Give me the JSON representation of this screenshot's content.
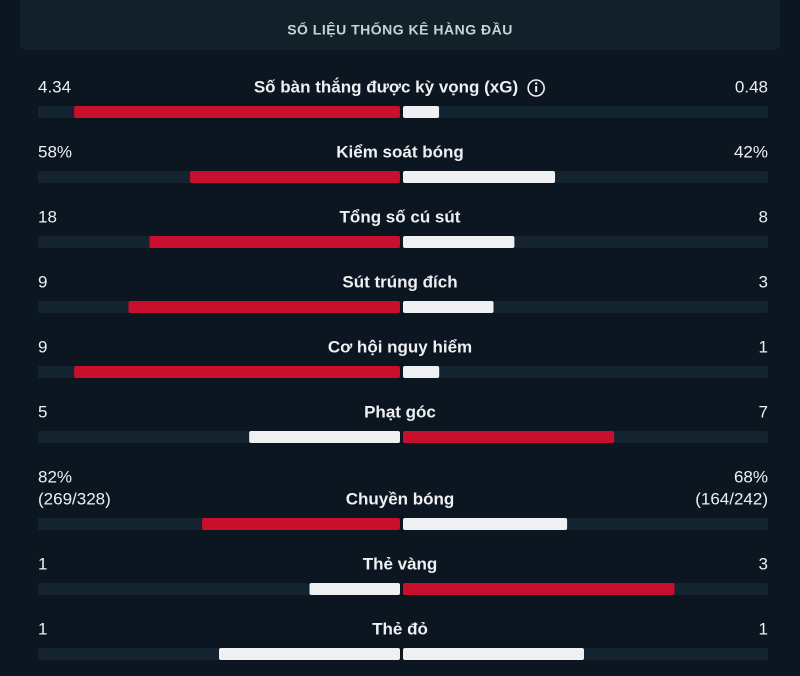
{
  "header": {
    "title": "SỐ LIỆU THỐNG KÊ HÀNG ĐẦU"
  },
  "colors": {
    "leader": "#c8102e",
    "other": "#eef0f2",
    "track": "#13232f"
  },
  "stats": [
    {
      "name": "Số bàn thắng được kỳ vọng (xG)",
      "home": 4.34,
      "away": 0.48,
      "info": true
    },
    {
      "name": "Kiểm soát bóng",
      "home": {
        "value": 58,
        "label": "58%"
      },
      "away": {
        "value": 42,
        "label": "42%"
      }
    },
    {
      "name": "Tổng số cú sút",
      "home": 18,
      "away": 8
    },
    {
      "name": "Sút trúng đích",
      "home": 9,
      "away": 3
    },
    {
      "name": "Cơ hội nguy hiểm",
      "home": 9,
      "away": 1
    },
    {
      "name": "Phạt góc",
      "home": 5,
      "away": 7
    },
    {
      "name": "Chuyền bóng",
      "home": {
        "value": 82,
        "label": "82%"
      },
      "away": {
        "value": 68,
        "label": "68%"
      },
      "home_detail": "(269/328)",
      "away_detail": "(164/242)"
    },
    {
      "name": "Thẻ vàng",
      "home": 1,
      "away": 3
    },
    {
      "name": "Thẻ đỏ",
      "home": 1,
      "away": 1
    }
  ]
}
